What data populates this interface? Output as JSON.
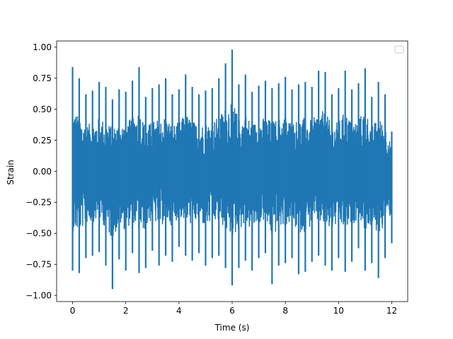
{
  "chart_data": {
    "type": "line",
    "xlabel": "Time (s)",
    "ylabel": "Strain",
    "xlim": [
      -0.6,
      12.6
    ],
    "ylim": [
      -1.05,
      1.05
    ],
    "x_ticks": [
      0,
      2,
      4,
      6,
      8,
      10,
      12
    ],
    "x_tick_labels": [
      "0",
      "2",
      "4",
      "6",
      "8",
      "10",
      "12"
    ],
    "y_ticks": [
      -1.0,
      -0.75,
      -0.5,
      -0.25,
      0.0,
      0.25,
      0.5,
      0.75,
      1.0
    ],
    "y_tick_labels": [
      "−1.00",
      "−0.75",
      "−0.50",
      "−0.25",
      "0.00",
      "0.25",
      "0.50",
      "0.75",
      "1.00"
    ],
    "grid": false,
    "legend": {
      "placement": "top-right",
      "entries": []
    },
    "series": [
      {
        "color": "#1f77b4",
        "x": [
          0,
          0.25,
          0.5,
          0.75,
          1,
          1.25,
          1.5,
          1.75,
          2,
          2.25,
          2.5,
          2.75,
          3,
          3.25,
          3.5,
          3.75,
          4,
          4.25,
          4.5,
          4.75,
          5,
          5.25,
          5.5,
          5.75,
          6,
          6.25,
          6.5,
          6.75,
          7,
          7.25,
          7.5,
          7.75,
          8,
          8.25,
          8.5,
          8.75,
          9,
          9.25,
          9.5,
          9.75,
          10,
          10.25,
          10.5,
          10.75,
          11,
          11.25,
          11.5,
          11.75,
          12
        ],
        "max": [
          0.84,
          0.75,
          0.62,
          0.65,
          0.72,
          0.68,
          0.58,
          0.66,
          0.64,
          0.73,
          0.84,
          0.6,
          0.67,
          0.7,
          0.75,
          0.62,
          0.66,
          0.78,
          0.68,
          0.62,
          0.65,
          0.67,
          0.75,
          0.87,
          0.98,
          0.7,
          0.78,
          0.64,
          0.69,
          0.73,
          0.67,
          0.71,
          0.76,
          0.66,
          0.7,
          0.72,
          0.68,
          0.81,
          0.8,
          0.62,
          0.67,
          0.81,
          0.66,
          0.71,
          0.83,
          0.6,
          0.72,
          0.62,
          0.32
        ],
        "min": [
          -0.8,
          -0.82,
          -0.7,
          -0.68,
          -0.65,
          -0.76,
          -0.95,
          -0.71,
          -0.8,
          -0.66,
          -0.82,
          -0.78,
          -0.64,
          -0.76,
          -0.68,
          -0.73,
          -0.61,
          -0.68,
          -0.72,
          -0.66,
          -0.76,
          -0.7,
          -0.68,
          -0.78,
          -0.92,
          -0.78,
          -0.72,
          -0.8,
          -0.7,
          -0.66,
          -0.91,
          -0.76,
          -0.74,
          -0.7,
          -0.83,
          -0.81,
          -0.73,
          -0.68,
          -0.76,
          -0.8,
          -0.7,
          -0.81,
          -0.73,
          -0.62,
          -0.8,
          -0.74,
          -0.86,
          -0.7,
          -0.58
        ]
      }
    ]
  }
}
